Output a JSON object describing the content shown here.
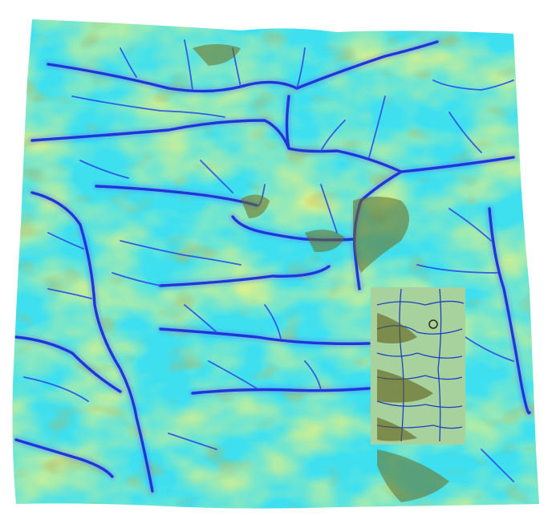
{
  "scene": {
    "kind": "terrain-flow-render",
    "background": "#ffffff",
    "palette": {
      "channel_deep": "#1a1acc",
      "channel_mid": "#2a4ee0",
      "valley": "#38e4f4",
      "valley_light": "#6ff2f0",
      "ridge": "#ecec55",
      "ridge_light": "#f4f48a",
      "shadow": "#8a8a22",
      "shadow_dark": "#5e5e18"
    },
    "inset_patch": {
      "present": true,
      "description_icon": "high-detail-patch"
    }
  }
}
